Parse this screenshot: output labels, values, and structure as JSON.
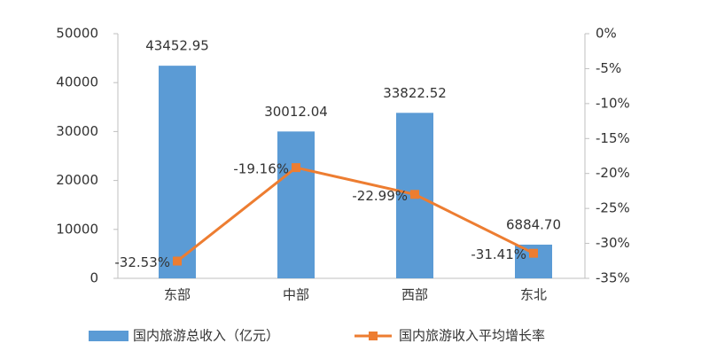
{
  "chart_data": {
    "type": "bar_line",
    "categories": [
      "东部",
      "中部",
      "西部",
      "东北"
    ],
    "series": [
      {
        "name": "国内旅游总收入（亿元）",
        "color": "#5b9bd5",
        "type": "bar",
        "values": [
          43452.95,
          30012.04,
          33822.52,
          6884.7
        ],
        "value_labels": [
          "43452.95",
          "30012.04",
          "33822.52",
          "6884.70"
        ]
      },
      {
        "name": "国内旅游收入平均增长率",
        "color": "#ed7d31",
        "type": "line",
        "axis": "y2",
        "values": [
          -32.53,
          -19.16,
          -22.99,
          -31.41
        ],
        "value_labels": [
          "-32.53%",
          "-19.16%",
          "-22.99%",
          "-31.41%"
        ]
      }
    ],
    "ylim": [
      0,
      50000
    ],
    "yticks": [
      0,
      10000,
      20000,
      30000,
      40000,
      50000
    ],
    "y2lim": [
      -35,
      0
    ],
    "y2ticks": [
      {
        "value": 0,
        "label": "0%"
      },
      {
        "value": -5,
        "label": "-5%"
      },
      {
        "value": -10,
        "label": "-10%"
      },
      {
        "value": -15,
        "label": "-15%"
      },
      {
        "value": -20,
        "label": "-20%"
      },
      {
        "value": -25,
        "label": "-25%"
      },
      {
        "value": -30,
        "label": "-30%"
      },
      {
        "value": -35,
        "label": "-35%"
      }
    ],
    "legend": "bottom"
  }
}
